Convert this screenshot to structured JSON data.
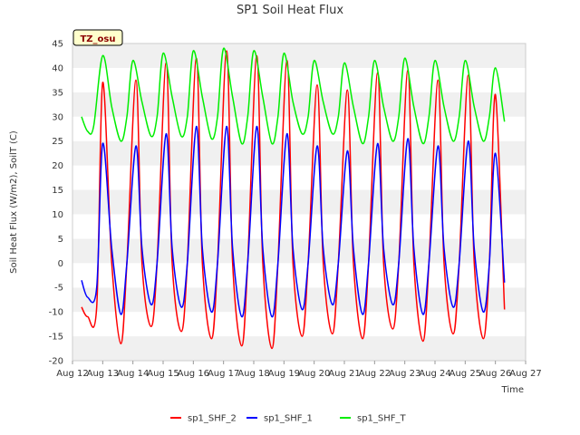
{
  "chart_data": {
    "type": "line",
    "title": "SP1 Soil Heat Flux",
    "xlabel": "Time",
    "ylabel": "Soil Heat Flux (W/m2), SoilT (C)",
    "timezone_badge": "TZ_osu",
    "ylim": [
      -20,
      45
    ],
    "xlim": [
      12,
      27
    ],
    "y_ticks": [
      -20,
      -15,
      -10,
      -5,
      0,
      5,
      10,
      15,
      20,
      25,
      30,
      35,
      40,
      45
    ],
    "x_ticks": [
      12,
      13,
      14,
      15,
      16,
      17,
      18,
      19,
      20,
      21,
      22,
      23,
      24,
      25,
      26,
      27
    ],
    "x_tick_labels": [
      "Aug 12",
      "Aug 13",
      "Aug 14",
      "Aug 15",
      "Aug 16",
      "Aug 17",
      "Aug 18",
      "Aug 19",
      "Aug 20",
      "Aug 21",
      "Aug 22",
      "Aug 23",
      "Aug 24",
      "Aug 25",
      "Aug 26",
      "Aug 27"
    ],
    "grid": "horizontal bands",
    "legend_position": "bottom-center",
    "series": [
      {
        "name": "sp1_SHF_2",
        "color": "#ff0000",
        "x": [
          12.3,
          12.5,
          12.8,
          13.0,
          13.3,
          13.6,
          13.8,
          14.1,
          14.3,
          14.6,
          14.8,
          15.1,
          15.3,
          15.6,
          15.8,
          16.1,
          16.3,
          16.6,
          16.8,
          17.1,
          17.3,
          17.6,
          17.8,
          18.1,
          18.3,
          18.6,
          18.8,
          19.1,
          19.3,
          19.6,
          19.8,
          20.1,
          20.3,
          20.6,
          20.8,
          21.1,
          21.3,
          21.6,
          21.8,
          22.1,
          22.3,
          22.6,
          22.8,
          23.1,
          23.3,
          23.6,
          23.8,
          24.1,
          24.3,
          24.6,
          24.8,
          25.1,
          25.3,
          25.6,
          25.8,
          26.0,
          26.3
        ],
        "values": [
          -9,
          -11,
          -9,
          37,
          0,
          -16.5,
          0,
          37.5,
          0,
          -13,
          0,
          41,
          0,
          -14,
          0,
          42,
          0,
          -15.5,
          0,
          43.5,
          0,
          -17,
          0,
          42.5,
          0,
          -17.5,
          0,
          41.5,
          0,
          -15,
          0,
          36.5,
          0,
          -14.5,
          0,
          35.5,
          0,
          -15.5,
          0,
          39,
          0,
          -13.5,
          0,
          39.5,
          0,
          -16,
          0,
          37.5,
          0,
          -14.5,
          0,
          38.5,
          0,
          -15.5,
          0,
          34.5,
          -9.5
        ]
      },
      {
        "name": "sp1_SHF_1",
        "color": "#0000ff",
        "x": [
          12.3,
          12.5,
          12.8,
          13.0,
          13.3,
          13.6,
          13.8,
          14.1,
          14.3,
          14.6,
          14.8,
          15.1,
          15.3,
          15.6,
          15.8,
          16.1,
          16.3,
          16.6,
          16.8,
          17.1,
          17.3,
          17.6,
          17.8,
          18.1,
          18.3,
          18.6,
          18.8,
          19.1,
          19.3,
          19.6,
          19.8,
          20.1,
          20.3,
          20.6,
          20.8,
          21.1,
          21.3,
          21.6,
          21.8,
          22.1,
          22.3,
          22.6,
          22.8,
          23.1,
          23.3,
          23.6,
          23.8,
          24.1,
          24.3,
          24.6,
          24.8,
          25.1,
          25.3,
          25.6,
          25.8,
          26.0,
          26.3
        ],
        "values": [
          -3.5,
          -7,
          -5,
          24.5,
          3,
          -10.5,
          0,
          24,
          3,
          -8.5,
          0,
          26.5,
          3,
          -9,
          0,
          28,
          3,
          -10,
          0,
          28,
          3,
          -11,
          0,
          28,
          3,
          -11,
          0,
          26.5,
          3,
          -9.5,
          0,
          24,
          3,
          -8.5,
          0,
          23,
          3,
          -10.5,
          0,
          24.5,
          3,
          -8.5,
          0,
          25.5,
          3,
          -10.5,
          0,
          24,
          3,
          -9,
          0,
          25,
          3,
          -10,
          0,
          22.5,
          -4
        ]
      },
      {
        "name": "sp1_SHF_T",
        "color": "#00ee00",
        "x": [
          12.3,
          12.5,
          12.7,
          13.0,
          13.3,
          13.6,
          13.8,
          14.0,
          14.3,
          14.6,
          14.8,
          15.0,
          15.3,
          15.6,
          15.8,
          16.0,
          16.3,
          16.6,
          16.8,
          17.0,
          17.3,
          17.6,
          17.8,
          18.0,
          18.3,
          18.6,
          18.8,
          19.0,
          19.3,
          19.6,
          19.8,
          20.0,
          20.3,
          20.6,
          20.8,
          21.0,
          21.3,
          21.6,
          21.8,
          22.0,
          22.3,
          22.6,
          22.8,
          23.0,
          23.3,
          23.6,
          23.8,
          24.0,
          24.3,
          24.6,
          24.8,
          25.0,
          25.3,
          25.6,
          25.8,
          26.0,
          26.3
        ],
        "values": [
          30,
          27,
          28,
          42.5,
          32,
          25,
          30,
          41.5,
          33,
          26,
          30,
          43,
          34,
          26,
          30,
          43.5,
          34,
          25.5,
          30,
          44,
          34,
          24.5,
          30,
          43.5,
          34,
          24.5,
          30,
          43,
          33,
          26.5,
          30,
          41.5,
          33,
          26.5,
          30,
          41,
          32,
          24.5,
          30,
          41.5,
          32,
          25,
          30,
          42,
          32,
          24.5,
          30,
          41.5,
          32,
          25,
          30,
          41.5,
          32,
          25,
          30,
          40,
          29
        ]
      }
    ]
  }
}
